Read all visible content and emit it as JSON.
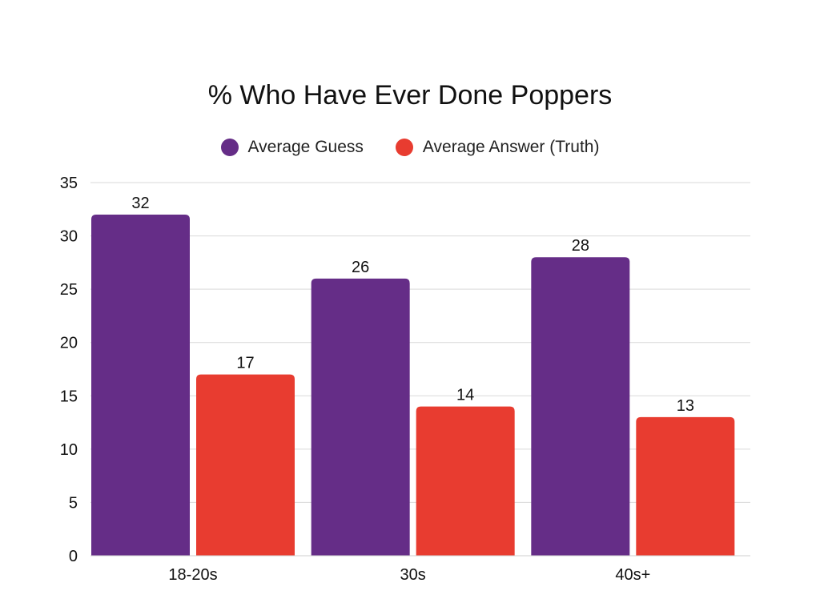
{
  "chart_data": {
    "type": "bar",
    "title": "% Who Have Ever Done Poppers",
    "xlabel": "",
    "ylabel": "",
    "categories": [
      "18-20s",
      "30s",
      "40s+"
    ],
    "series": [
      {
        "name": "Average Guess",
        "values": [
          32,
          26,
          28
        ],
        "color": "#652d87"
      },
      {
        "name": "Average Answer (Truth)",
        "values": [
          17,
          14,
          13
        ],
        "color": "#e83c30"
      }
    ],
    "ylim": [
      0,
      35
    ],
    "yticks": [
      0,
      5,
      10,
      15,
      20,
      25,
      30,
      35
    ],
    "grid": true,
    "legend": "top-center",
    "data_labels": true
  }
}
